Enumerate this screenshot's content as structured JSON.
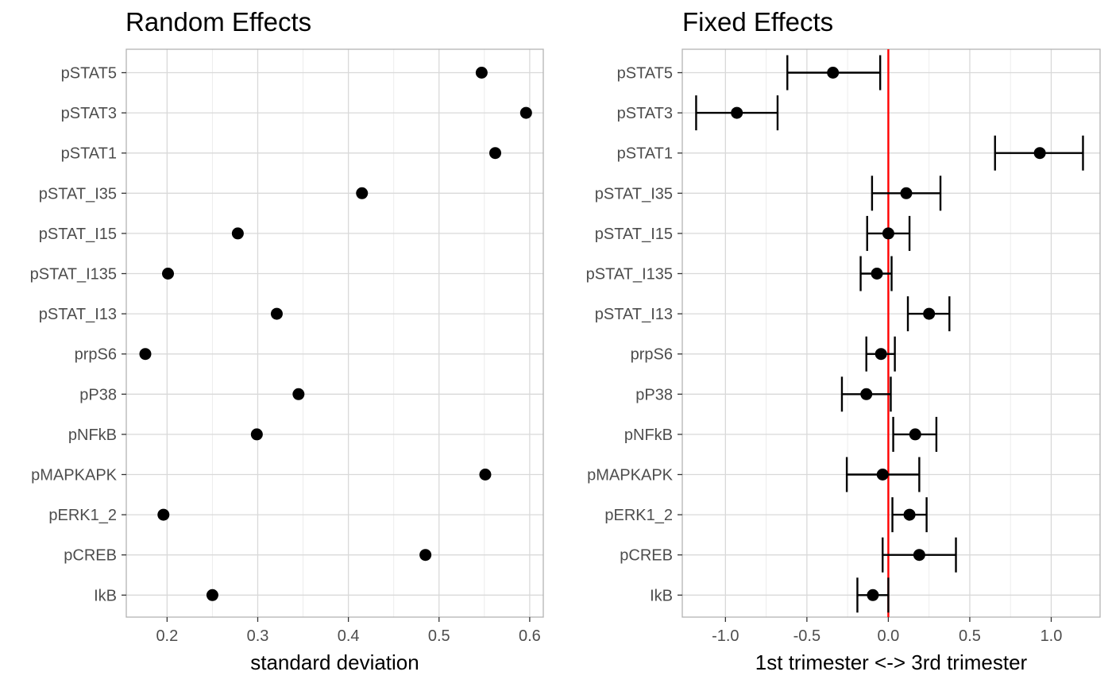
{
  "chart_data": [
    {
      "type": "scatter",
      "title": "Random Effects",
      "xlabel": "standard deviation",
      "ylabel": "",
      "xlim": [
        0.155,
        0.615
      ],
      "xticks": [
        0.2,
        0.3,
        0.4,
        0.5,
        0.6
      ],
      "xtick_labels": [
        "0.2",
        "0.3",
        "0.4",
        "0.5",
        "0.6"
      ],
      "grid": true,
      "categories": [
        "pSTAT5",
        "pSTAT3",
        "pSTAT1",
        "pSTAT_I35",
        "pSTAT_I15",
        "pSTAT_I135",
        "pSTAT_I13",
        "prpS6",
        "pP38",
        "pNFkB",
        "pMAPKAPK",
        "pERK1_2",
        "pCREB",
        "IkB"
      ],
      "values": [
        0.547,
        0.596,
        0.562,
        0.415,
        0.278,
        0.201,
        0.321,
        0.176,
        0.345,
        0.299,
        0.551,
        0.196,
        0.485,
        0.25
      ],
      "point_color": "#000000"
    },
    {
      "type": "scatter",
      "title": "Fixed Effects",
      "xlabel": "1st trimester <-> 3rd trimester",
      "ylabel": "",
      "xlim": [
        -1.265,
        1.3
      ],
      "xticks": [
        -1.0,
        -0.5,
        0.0,
        0.5,
        1.0
      ],
      "xtick_labels": [
        "-1.0",
        "-0.5",
        "0.0",
        "0.5",
        "1.0"
      ],
      "grid": true,
      "reference_line": {
        "x": 0,
        "color": "#ff0000"
      },
      "categories": [
        "pSTAT5",
        "pSTAT3",
        "pSTAT1",
        "pSTAT_I35",
        "pSTAT_I15",
        "pSTAT_I135",
        "pSTAT_I13",
        "prpS6",
        "pP38",
        "pNFkB",
        "pMAPKAPK",
        "pERK1_2",
        "pCREB",
        "IkB"
      ],
      "values": [
        -0.34,
        -0.93,
        0.93,
        0.11,
        0.0,
        -0.07,
        0.25,
        -0.045,
        -0.135,
        0.165,
        -0.035,
        0.13,
        0.19,
        -0.095
      ],
      "lower": [
        -0.62,
        -1.18,
        0.655,
        -0.1,
        -0.13,
        -0.17,
        0.12,
        -0.135,
        -0.285,
        0.03,
        -0.255,
        0.025,
        -0.035,
        -0.19
      ],
      "upper": [
        -0.05,
        -0.68,
        1.195,
        0.32,
        0.13,
        0.02,
        0.375,
        0.04,
        0.015,
        0.295,
        0.19,
        0.235,
        0.415,
        0.0
      ],
      "point_color": "#000000"
    }
  ]
}
